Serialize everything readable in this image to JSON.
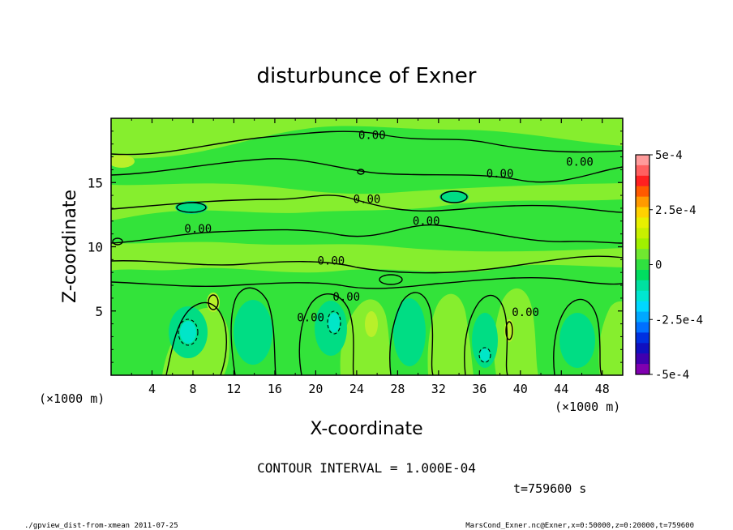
{
  "chart_data": {
    "type": "heatmap",
    "title": "disturbunce of Exner",
    "xlabel": "X-coordinate",
    "ylabel": "Z-coordinate",
    "x_unit": "(×1000 m)",
    "y_unit": "(×1000 m)",
    "xlim": [
      0,
      50
    ],
    "ylim": [
      0,
      20
    ],
    "x_ticks": [
      4,
      8,
      12,
      16,
      20,
      24,
      28,
      32,
      36,
      40,
      44,
      48
    ],
    "y_ticks": [
      5,
      10,
      15
    ],
    "colorbar": {
      "range": [
        -0.0005,
        0.0005
      ],
      "labels": [
        "5e-4",
        "2.5e-4",
        "0",
        "-2.5e-4",
        "-5e-4"
      ],
      "colors": [
        "#ff9b9b",
        "#ff6060",
        "#ff2020",
        "#ff5a00",
        "#ff9a00",
        "#ffd200",
        "#e8f000",
        "#c8f000",
        "#a0f000",
        "#70e830",
        "#30e040",
        "#00dd60",
        "#00e0a0",
        "#00e6d0",
        "#00d8ff",
        "#00a8ff",
        "#0070ff",
        "#0030e0",
        "#1010c0",
        "#4000b0",
        "#8000b0"
      ]
    },
    "contour_labels": [
      {
        "text": "0.00",
        "x": 25.5,
        "z": 18.4
      },
      {
        "text": "0.00",
        "x": 45.8,
        "z": 16.3
      },
      {
        "text": "0.00",
        "x": 38.0,
        "z": 15.4
      },
      {
        "text": "0.00",
        "x": 25.0,
        "z": 13.4
      },
      {
        "text": "0.00",
        "x": 30.8,
        "z": 11.7
      },
      {
        "text": "0.00",
        "x": 8.5,
        "z": 11.1
      },
      {
        "text": "0.00",
        "x": 21.5,
        "z": 8.6
      },
      {
        "text": "0.00",
        "x": 23.0,
        "z": 5.8
      },
      {
        "text": "0.00",
        "x": 19.5,
        "z": 4.2
      },
      {
        "text": "0.00",
        "x": 40.5,
        "z": 4.6
      }
    ],
    "contour_interval_text": "CONTOUR INTERVAL = 1.000E-04",
    "time_text": "t=759600 s"
  },
  "footer": {
    "left": "./gpview_dist-from-xmean  2011-07-25",
    "right": "MarsCond_Exner.nc@Exner,x=0:50000,z=0:20000,t=759600"
  },
  "colors": {
    "base": "#33e33a",
    "light": "#86ee2e",
    "yellowgreen": "#b8f02a",
    "teal": "#00dd84",
    "cyan": "#00e6c8"
  }
}
